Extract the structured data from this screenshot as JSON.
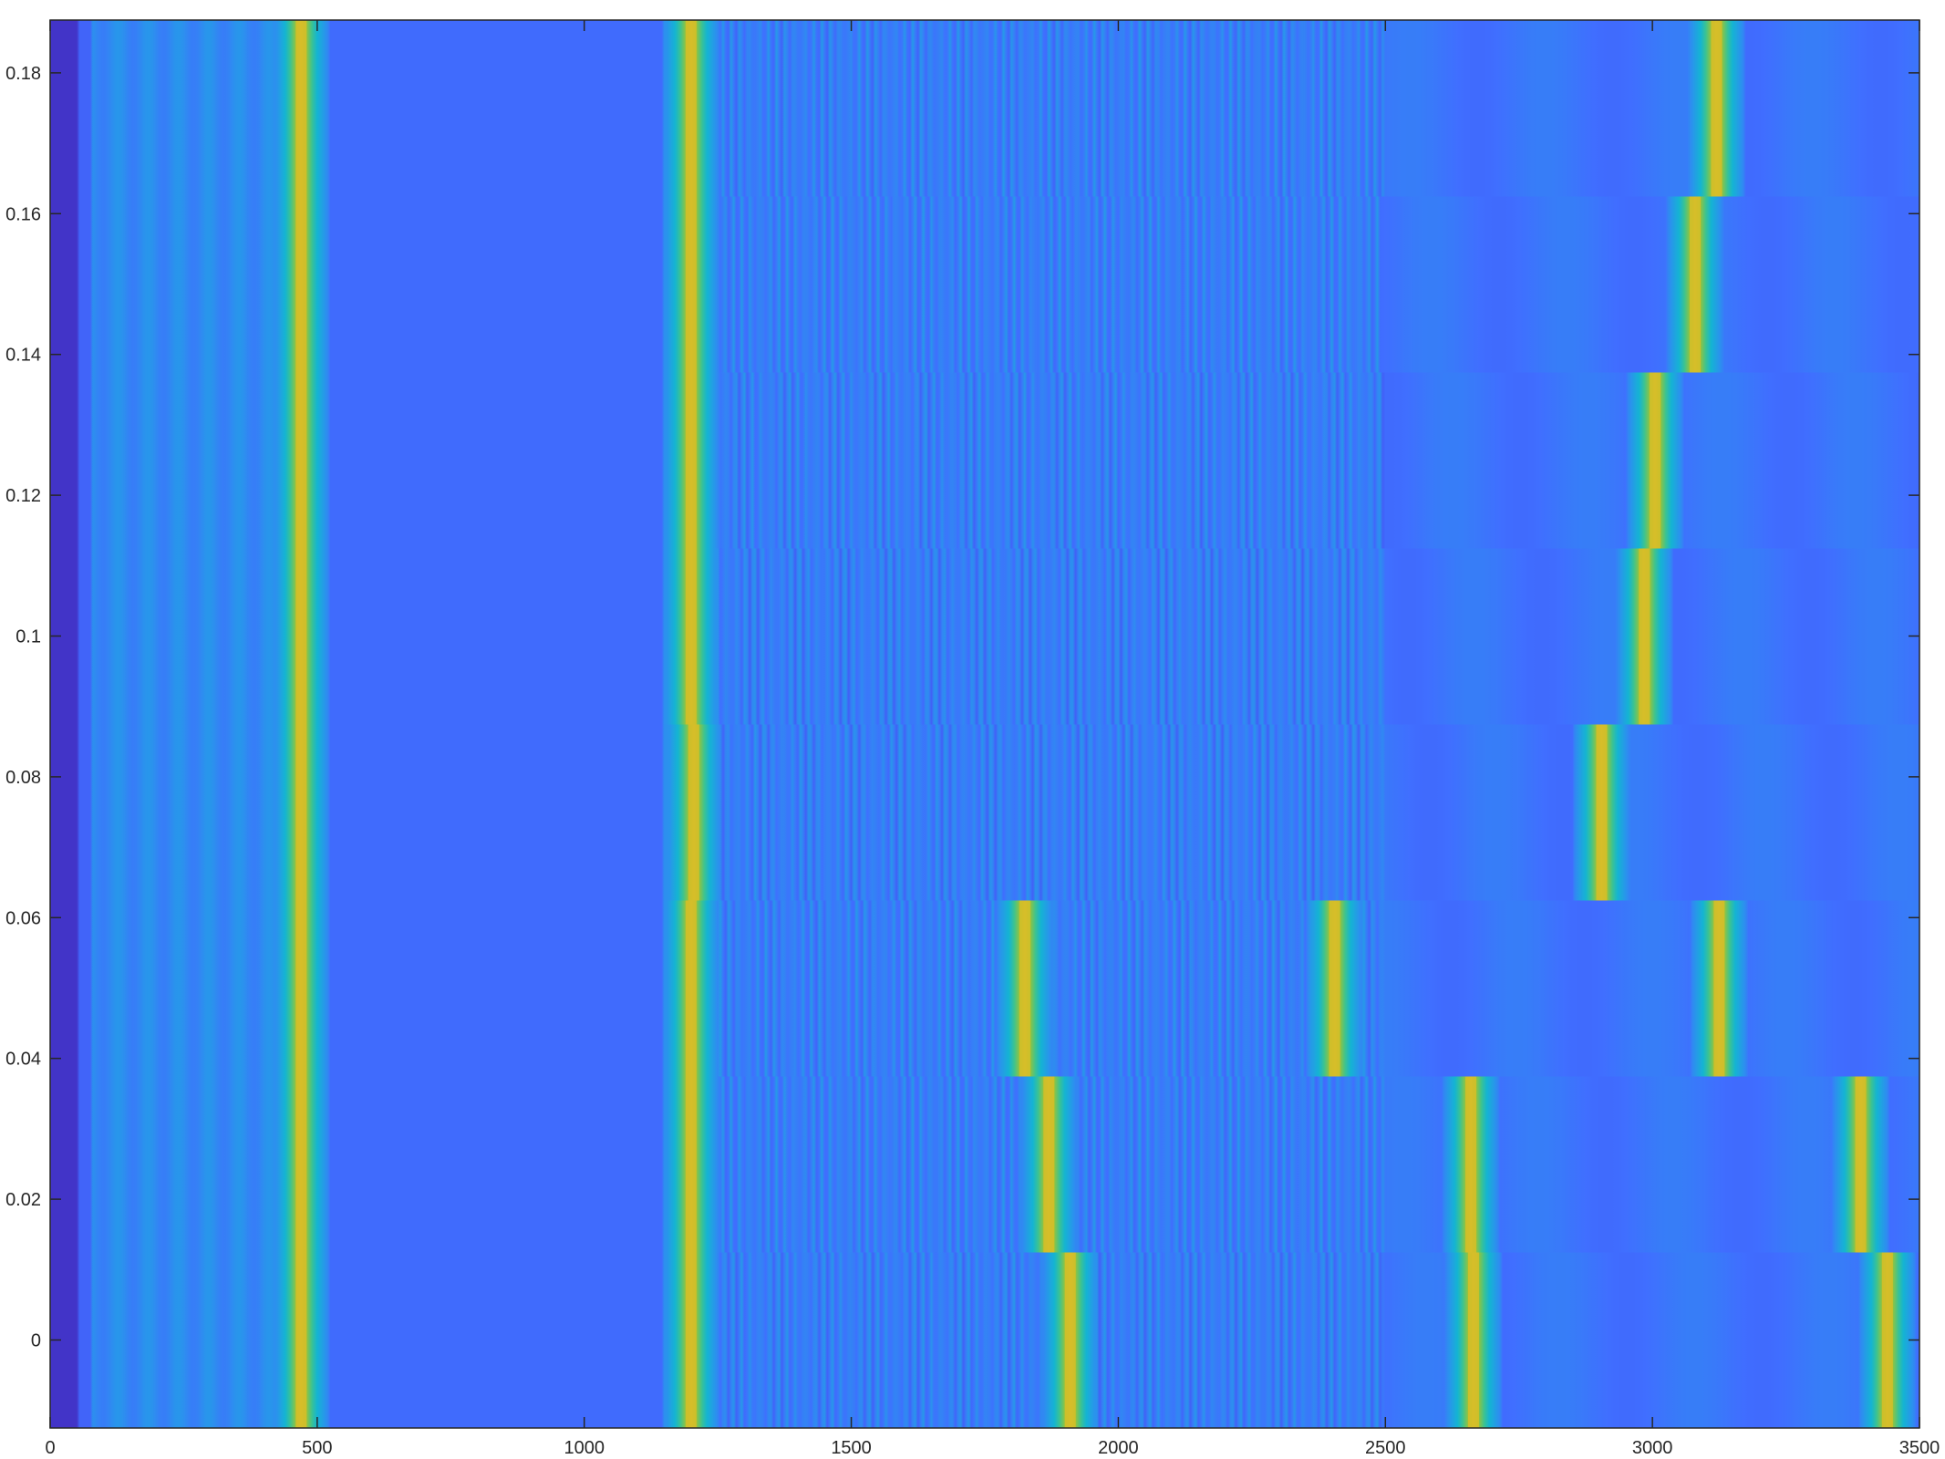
{
  "chart_data": {
    "type": "heatmap",
    "title": "",
    "xlabel": "",
    "ylabel": "",
    "xlim": [
      0,
      3500
    ],
    "ylim": [
      -0.0125,
      0.1875
    ],
    "x_ticks": [
      0,
      500,
      1000,
      1500,
      2000,
      2500,
      3000,
      3500
    ],
    "x_tick_labels": [
      "0",
      "500",
      "1000",
      "1500",
      "2000",
      "2500",
      "3000",
      "3500"
    ],
    "y_ticks": [
      0,
      0.02,
      0.04,
      0.06,
      0.08,
      0.1,
      0.12,
      0.14,
      0.16,
      0.18
    ],
    "y_tick_labels": [
      "0",
      "0.02",
      "0.04",
      "0.06",
      "0.08",
      "0.1",
      "0.12",
      "0.14",
      "0.16",
      "0.18"
    ],
    "colormap": "parula",
    "grid": false,
    "rows": [
      {
        "y_center": 0.0,
        "peaks_x": [
          470,
          1200,
          1910,
          2665,
          3440
        ]
      },
      {
        "y_center": 0.025,
        "peaks_x": [
          470,
          1200,
          1870,
          2660,
          3390
        ]
      },
      {
        "y_center": 0.05,
        "peaks_x": [
          470,
          1200,
          1825,
          2405,
          3125
        ]
      },
      {
        "y_center": 0.075,
        "peaks_x": [
          470,
          1205,
          2905
        ]
      },
      {
        "y_center": 0.1,
        "peaks_x": [
          470,
          1200,
          2985
        ]
      },
      {
        "y_center": 0.125,
        "peaks_x": [
          470,
          1200,
          3005
        ]
      },
      {
        "y_center": 0.15,
        "peaks_x": [
          470,
          1200,
          3080
        ]
      },
      {
        "y_center": 0.175,
        "peaks_x": [
          470,
          1200,
          3120
        ]
      }
    ]
  }
}
